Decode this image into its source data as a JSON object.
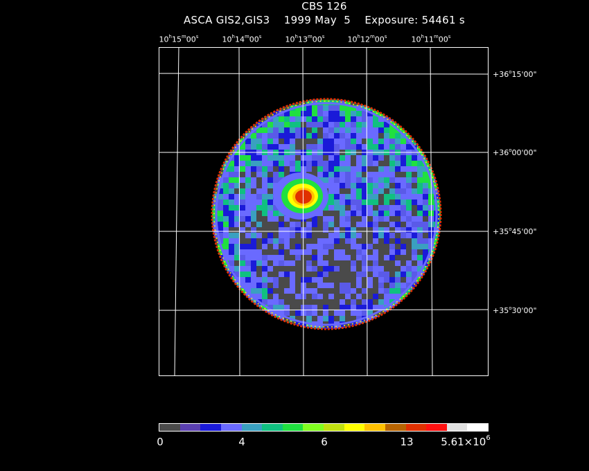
{
  "title": {
    "object": "CBS 126",
    "subtitle": "ASCA GIS2,GIS3    1999 May  5    Exposure: 54461 s"
  },
  "ra_axis": {
    "ticks": [
      {
        "h": "10",
        "m": "15",
        "s": "00"
      },
      {
        "h": "10",
        "m": "14",
        "s": "00"
      },
      {
        "h": "10",
        "m": "13",
        "s": "00"
      },
      {
        "h": "10",
        "m": "12",
        "s": "00"
      },
      {
        "h": "10",
        "m": "11",
        "s": "00"
      }
    ],
    "unit_h": "h",
    "unit_m": "m",
    "unit_s": "s"
  },
  "dec_axis": {
    "ticks": [
      {
        "sign": "+",
        "d": "36",
        "m": "15",
        "s": "00"
      },
      {
        "sign": "+",
        "d": "36",
        "m": "00",
        "s": "00"
      },
      {
        "sign": "+",
        "d": "35",
        "m": "45",
        "s": "00"
      },
      {
        "sign": "+",
        "d": "35",
        "m": "30",
        "s": "00"
      }
    ]
  },
  "colorbar": {
    "colors": [
      "#4a4a4a",
      "#5a3fb0",
      "#1a1ad8",
      "#6a6aff",
      "#3aa0c0",
      "#10c080",
      "#20e040",
      "#80ff20",
      "#c0e010",
      "#ffff00",
      "#ffc000",
      "#b86400",
      "#e03000",
      "#ff1010",
      "#e0e0e0",
      "#ffffff"
    ],
    "labels": [
      {
        "text": "0"
      },
      {
        "text": "4"
      },
      {
        "text": "6"
      },
      {
        "text": "13"
      },
      {
        "text": "5.61×10",
        "exp": "6"
      }
    ]
  },
  "image": {
    "description_colors": {
      "background": "#000000",
      "low": "#4a4a4a",
      "medium": "#6a6aff",
      "source_core": "#e03000"
    }
  }
}
